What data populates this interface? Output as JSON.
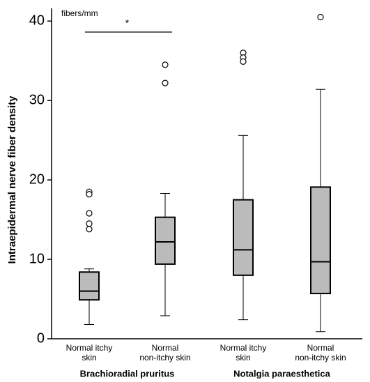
{
  "chart_data": {
    "type": "box",
    "y_label": "Intraepidermal nerve fiber density",
    "unit_label": "fibers/mm",
    "annotation": "*",
    "categories": [
      [
        "Normal itchy",
        "skin"
      ],
      [
        "Normal",
        "non-itchy skin"
      ],
      [
        "Normal itchy",
        "skin"
      ],
      [
        "Normal",
        "non-itchy skin"
      ]
    ],
    "groups": [
      "Brachioradial pruritus",
      "Notalgia paraesthetica"
    ],
    "color": "#bbbbbb",
    "boxes": [
      {
        "whisker_low": 1.8,
        "q1": 4.9,
        "median": 6.0,
        "q3": 8.4,
        "whisker_high": 8.8,
        "outliers": [
          18.5,
          18.2,
          15.8,
          14.5,
          13.8
        ]
      },
      {
        "whisker_low": 2.9,
        "q1": 9.4,
        "median": 12.2,
        "q3": 15.3,
        "whisker_high": 18.3,
        "outliers": [
          34.5,
          32.2
        ]
      },
      {
        "whisker_low": 2.4,
        "q1": 8.0,
        "median": 11.2,
        "q3": 17.5,
        "whisker_high": 25.6,
        "outliers": [
          36.0,
          35.4,
          34.9
        ]
      },
      {
        "whisker_low": 0.9,
        "q1": 5.7,
        "median": 9.7,
        "q3": 19.1,
        "whisker_high": 31.4,
        "outliers": [
          40.5
        ]
      }
    ],
    "ylim": [
      0,
      41.6
    ],
    "yticks": [
      0,
      10,
      20,
      30,
      40
    ]
  }
}
